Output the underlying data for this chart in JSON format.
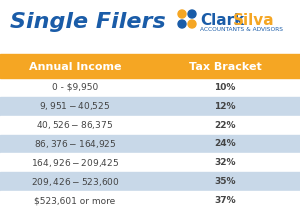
{
  "title": "Single Filers",
  "col1_header": "Annual Income",
  "col2_header": "Tax Bracket",
  "rows": [
    [
      "0 - $9,950",
      "10%"
    ],
    [
      "$9,951 - $40,525",
      "12%"
    ],
    [
      "$40,526 - $86,375",
      "22%"
    ],
    [
      "$86,376 - $164,925",
      "24%"
    ],
    [
      "$164,926 - $209,425",
      "32%"
    ],
    [
      "$209,426 - $523,600",
      "35%"
    ],
    [
      "$523,601 or more",
      "37%"
    ]
  ],
  "header_bg": "#F5A623",
  "row_alt_bg": "#C8D8E8",
  "row_white_bg": "#FFFFFF",
  "bg_color": "#FFFFFF",
  "title_color": "#1A5CA8",
  "header_text_color": "#FFFFFF",
  "row_text_color": "#444444",
  "orange_color": "#F5A623",
  "blue_color": "#1A5CA8",
  "clark_silva_blue": "#1A5CA8",
  "clark_silva_orange": "#F5A623",
  "subtitle_text": "ACCOUNTANTS & ADVISORS",
  "clark_text": "Clark",
  "silva_text": "Silva"
}
